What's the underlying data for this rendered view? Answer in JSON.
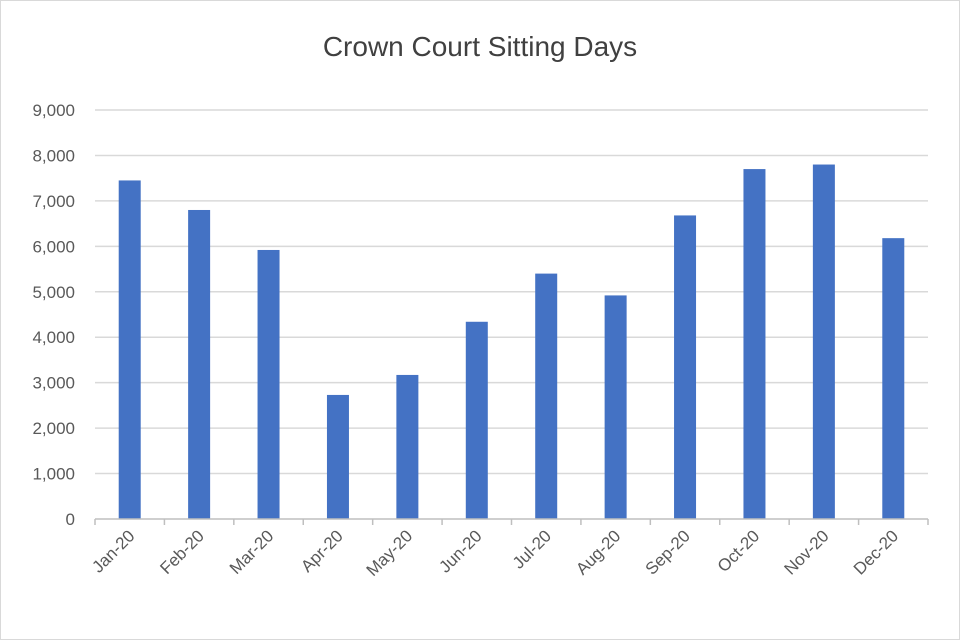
{
  "chart_data": {
    "type": "bar",
    "title": "Crown Court Sitting Days",
    "xlabel": "",
    "ylabel": "",
    "categories": [
      "Jan-20",
      "Feb-20",
      "Mar-20",
      "Apr-20",
      "May-20",
      "Jun-20",
      "Jul-20",
      "Aug-20",
      "Sep-20",
      "Oct-20",
      "Nov-20",
      "Dec-20"
    ],
    "values": [
      7450,
      6800,
      5920,
      2730,
      3170,
      4340,
      5400,
      4920,
      6680,
      7700,
      7800,
      6180
    ],
    "ylim": [
      0,
      9000
    ],
    "yticks": [
      "0",
      "1,000",
      "2,000",
      "3,000",
      "4,000",
      "5,000",
      "6,000",
      "7,000",
      "8,000",
      "9,000"
    ],
    "grid": true,
    "legend": "none",
    "colors": {
      "bar": "#4472c4",
      "grid": "#d9d9d9",
      "axis": "#bfbfbf",
      "text": "#595959"
    }
  }
}
